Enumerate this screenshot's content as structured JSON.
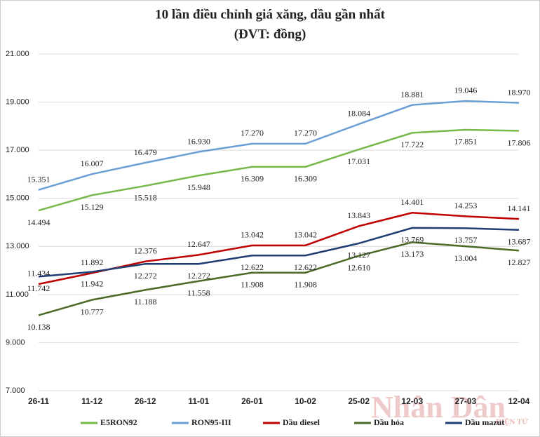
{
  "chart_data": {
    "type": "line",
    "title": "10 lần điều chỉnh giá xăng, dầu gần nhất",
    "subtitle": "(ĐVT: đồng)",
    "watermark": "Nhân Dân",
    "watermark_sub": "ĐIỆN TỬ",
    "categories": [
      "26-11",
      "11-12",
      "26-12",
      "11-01",
      "26-01",
      "10-02",
      "25-02",
      "12-03",
      "27-03",
      "12-04"
    ],
    "ylim": [
      7000,
      21000
    ],
    "yticks": [
      {
        "value": 7000,
        "label": "7.000"
      },
      {
        "value": 9000,
        "label": "9.000"
      },
      {
        "value": 11000,
        "label": "11.000"
      },
      {
        "value": 13000,
        "label": "13.000"
      },
      {
        "value": 15000,
        "label": "15.000"
      },
      {
        "value": 17000,
        "label": "17.000"
      },
      {
        "value": 19000,
        "label": "19.000"
      },
      {
        "value": 21000,
        "label": "21.000"
      }
    ],
    "grid": true,
    "legend": "bottom",
    "series": [
      {
        "name": "E5RON92",
        "color": "#77b84a",
        "values": [
          14494,
          15129,
          15518,
          15948,
          16309,
          16309,
          17031,
          17722,
          17851,
          17806
        ],
        "value_labels": [
          "14.494",
          "15.129",
          "15.518",
          "15.948",
          "16.309",
          "16.309",
          "17.031",
          "17.722",
          "17.851",
          "17.806"
        ]
      },
      {
        "name": "RON95-III",
        "color": "#6b9fd4",
        "values": [
          15351,
          16007,
          16479,
          16930,
          17270,
          17270,
          18084,
          18881,
          19046,
          18970
        ],
        "value_labels": [
          "15.351",
          "16.007",
          "16.479",
          "16.930",
          "17.270",
          "17.270",
          "18.084",
          "18.881",
          "19.046",
          "18.970"
        ]
      },
      {
        "name": "Dầu diesel",
        "color": "#c00000",
        "values": [
          11434,
          11892,
          12376,
          12647,
          13042,
          13042,
          13843,
          14401,
          14253,
          14141
        ],
        "value_labels": [
          "11.434",
          "11.892",
          "12.376",
          "12.647",
          "13.042",
          "13.042",
          "13.843",
          "14.401",
          "14.253",
          "14.141"
        ]
      },
      {
        "name": "Dầu hỏa",
        "color": "#4a6b27",
        "values": [
          10138,
          10777,
          11188,
          11558,
          11908,
          11908,
          12610,
          13173,
          13004,
          12827
        ],
        "value_labels": [
          "10.138",
          "10.777",
          "11.188",
          "11.558",
          "11.908",
          "11.908",
          "12.610",
          "13.173",
          "13.004",
          "12.827"
        ]
      },
      {
        "name": "Dầu mazut",
        "color": "#1f3d73",
        "values": [
          11742,
          11942,
          12272,
          12272,
          12622,
          12622,
          13127,
          13769,
          13757,
          13687
        ],
        "value_labels": [
          "11.742",
          "11.942",
          "12.272",
          "12.272",
          "12.622",
          "12.622",
          "13.127",
          "13.769",
          "13.757",
          "13.687"
        ]
      }
    ]
  }
}
